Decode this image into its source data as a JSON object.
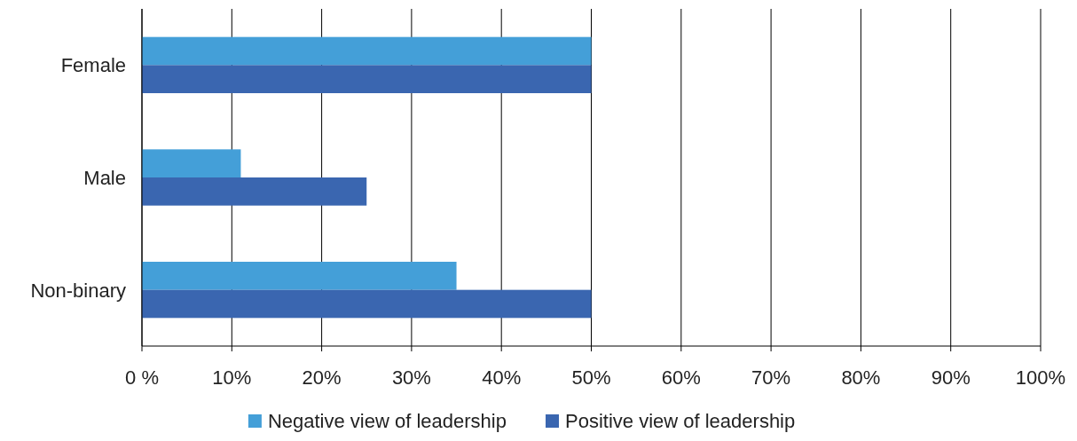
{
  "chart_data": {
    "type": "bar",
    "orientation": "horizontal",
    "categories": [
      "Female",
      "Male",
      "Non-binary"
    ],
    "series": [
      {
        "name": "Negative view of leadership",
        "color": "#449fd8",
        "values": [
          50,
          11,
          35
        ]
      },
      {
        "name": "Positive view of leadership",
        "color": "#3a66b0",
        "values": [
          50,
          25,
          50
        ]
      }
    ],
    "xlim": [
      0,
      100
    ],
    "xticks": [
      {
        "value": 0,
        "label": "0 %"
      },
      {
        "value": 10,
        "label": "10%"
      },
      {
        "value": 20,
        "label": "20%"
      },
      {
        "value": 30,
        "label": "30%"
      },
      {
        "value": 40,
        "label": "40%"
      },
      {
        "value": 50,
        "label": "50%"
      },
      {
        "value": 60,
        "label": "60%"
      },
      {
        "value": 70,
        "label": "70%"
      },
      {
        "value": 80,
        "label": "80%"
      },
      {
        "value": 90,
        "label": "90%"
      },
      {
        "value": 100,
        "label": "100%"
      }
    ],
    "grid": "x",
    "legend": "bottom"
  }
}
